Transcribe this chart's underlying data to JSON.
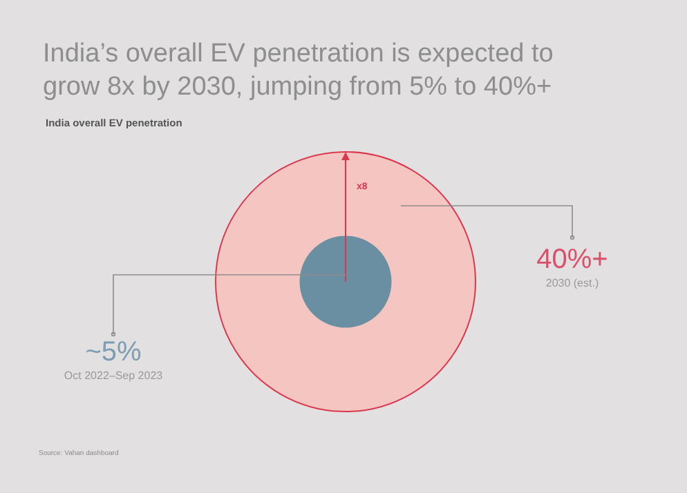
{
  "chart_data": {
    "type": "other",
    "title": "India’s overall EV penetration is expected to grow 8x by 2030, jumping from 5% to 40%+",
    "subtitle": "India overall EV penetration",
    "categories": [
      "Oct 2022–Sep 2023",
      "2030 (est.)"
    ],
    "values": [
      5,
      40
    ],
    "value_labels": [
      "~5%",
      "40%+"
    ],
    "colors": [
      "#6a8fa3",
      "#f5c6c1"
    ],
    "annotations": [
      "x8",
      "Source: Vahan dashboard"
    ]
  }
}
